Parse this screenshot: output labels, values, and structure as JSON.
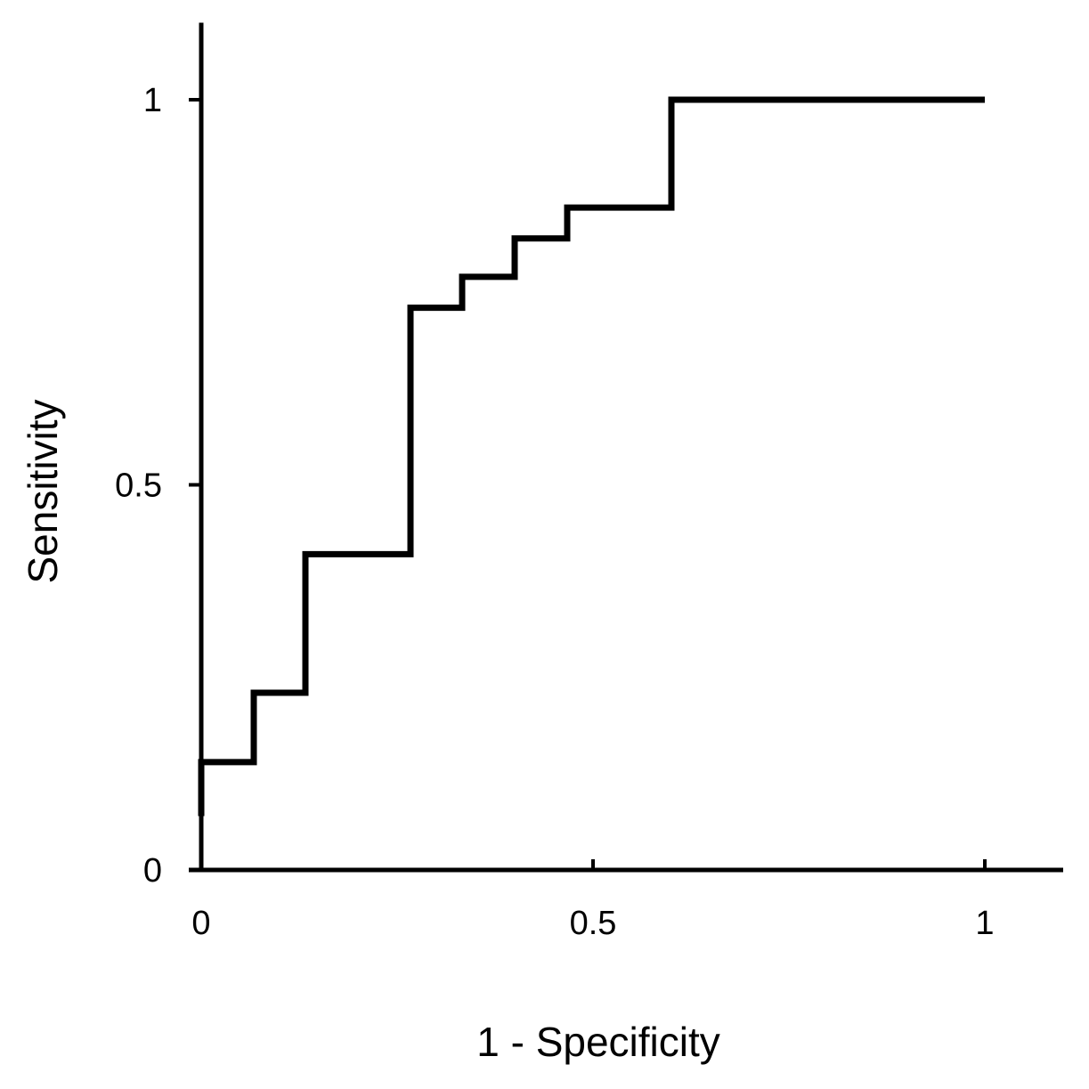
{
  "chart_data": {
    "type": "line",
    "step": true,
    "title": "",
    "xlabel": "1 - Specificity",
    "ylabel": "Sensitivity",
    "xlim": [
      0,
      1.1
    ],
    "ylim": [
      0,
      1.1
    ],
    "grid": false,
    "x_ticks": [
      0,
      0.5,
      1
    ],
    "y_ticks": [
      0,
      0.5,
      1
    ],
    "x_tick_labels": [
      "0",
      "0.5",
      "1"
    ],
    "y_tick_labels": [
      "0",
      "0.5",
      "1"
    ],
    "series": [
      {
        "name": "",
        "color": "#000000",
        "points": [
          [
            0,
            0.07
          ],
          [
            0,
            0.14
          ],
          [
            0.067,
            0.14
          ],
          [
            0.067,
            0.23
          ],
          [
            0.133,
            0.23
          ],
          [
            0.133,
            0.41
          ],
          [
            0.267,
            0.41
          ],
          [
            0.267,
            0.73
          ],
          [
            0.333,
            0.73
          ],
          [
            0.333,
            0.77
          ],
          [
            0.4,
            0.77
          ],
          [
            0.4,
            0.82
          ],
          [
            0.467,
            0.82
          ],
          [
            0.467,
            0.86
          ],
          [
            0.6,
            0.86
          ],
          [
            0.6,
            1.0
          ],
          [
            1.0,
            1.0
          ]
        ]
      }
    ]
  }
}
